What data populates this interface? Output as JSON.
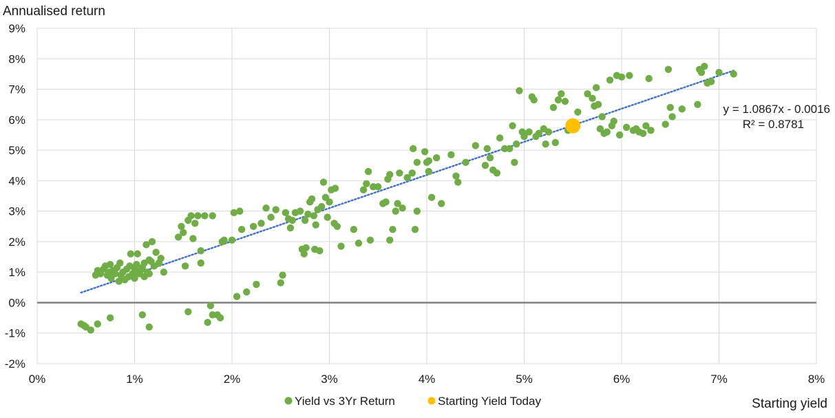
{
  "chart_data": {
    "type": "scatter",
    "ylabel": "Annualised return",
    "xlabel": "Starting yield",
    "xlim": [
      0,
      8
    ],
    "ylim": [
      -2,
      9
    ],
    "x_ticks": [
      "0%",
      "1%",
      "2%",
      "3%",
      "4%",
      "5%",
      "6%",
      "7%",
      "8%"
    ],
    "y_ticks": [
      "9%",
      "8%",
      "7%",
      "6%",
      "5%",
      "4%",
      "3%",
      "2%",
      "1%",
      "0%",
      "-1%",
      "-2%"
    ],
    "grid": "horizontal and vertical",
    "legend_position": "bottom-center",
    "trendline": {
      "equation": "y = 1.0867x - 0.0016",
      "r_squared": "R² = 0.8781",
      "slope": 1.0867,
      "intercept": -0.16,
      "x_start": 0.45,
      "x_end": 7.15,
      "color": "#4472c4"
    },
    "series": [
      {
        "name": "Yield vs 3Yr Return",
        "color": "#70ad47",
        "points": [
          [
            0.45,
            -0.7
          ],
          [
            0.48,
            -0.75
          ],
          [
            0.5,
            -0.8
          ],
          [
            0.55,
            -0.9
          ],
          [
            0.62,
            -0.7
          ],
          [
            0.75,
            -0.5
          ],
          [
            1.08,
            -0.4
          ],
          [
            1.15,
            -0.8
          ],
          [
            1.55,
            -0.3
          ],
          [
            1.75,
            -0.65
          ],
          [
            1.78,
            -0.1
          ],
          [
            1.8,
            -0.4
          ],
          [
            1.85,
            -0.4
          ],
          [
            1.88,
            -0.5
          ],
          [
            0.6,
            0.9
          ],
          [
            0.62,
            1.05
          ],
          [
            0.65,
            0.95
          ],
          [
            0.68,
            1.1
          ],
          [
            0.7,
            1.2
          ],
          [
            0.72,
            0.9
          ],
          [
            0.74,
            1.0
          ],
          [
            0.75,
            1.25
          ],
          [
            0.76,
            0.8
          ],
          [
            0.78,
            1.05
          ],
          [
            0.8,
            0.95
          ],
          [
            0.82,
            1.15
          ],
          [
            0.84,
            0.7
          ],
          [
            0.85,
            1.3
          ],
          [
            0.86,
            0.9
          ],
          [
            0.88,
            1.0
          ],
          [
            0.9,
            0.75
          ],
          [
            0.92,
            1.1
          ],
          [
            0.94,
            0.85
          ],
          [
            0.95,
            1.2
          ],
          [
            0.96,
            1.6
          ],
          [
            0.98,
            0.95
          ],
          [
            1.0,
            1.1
          ],
          [
            1.0,
            0.8
          ],
          [
            1.02,
            1.25
          ],
          [
            1.03,
            1.6
          ],
          [
            1.05,
            0.95
          ],
          [
            1.06,
            1.05
          ],
          [
            1.08,
            1.15
          ],
          [
            1.1,
            1.3
          ],
          [
            1.1,
            0.85
          ],
          [
            1.12,
            1.9
          ],
          [
            1.13,
            1.0
          ],
          [
            1.15,
            1.4
          ],
          [
            1.15,
            0.95
          ],
          [
            1.17,
            1.35
          ],
          [
            1.18,
            2.0
          ],
          [
            1.2,
            1.2
          ],
          [
            1.22,
            1.65
          ],
          [
            1.25,
            1.3
          ],
          [
            1.27,
            1.45
          ],
          [
            1.3,
            1.0
          ],
          [
            1.45,
            2.15
          ],
          [
            1.48,
            2.5
          ],
          [
            1.5,
            2.3
          ],
          [
            1.52,
            1.2
          ],
          [
            1.55,
            2.7
          ],
          [
            1.58,
            2.85
          ],
          [
            1.6,
            2.1
          ],
          [
            1.62,
            2.6
          ],
          [
            1.65,
            2.85
          ],
          [
            1.68,
            1.7
          ],
          [
            1.68,
            1.3
          ],
          [
            1.72,
            2.85
          ],
          [
            1.8,
            2.85
          ],
          [
            1.9,
            2.0
          ],
          [
            1.92,
            2.05
          ],
          [
            2.0,
            2.05
          ],
          [
            2.02,
            2.95
          ],
          [
            2.05,
            0.2
          ],
          [
            2.08,
            3.0
          ],
          [
            2.1,
            2.4
          ],
          [
            2.15,
            0.35
          ],
          [
            2.22,
            2.5
          ],
          [
            2.25,
            0.6
          ],
          [
            2.3,
            2.6
          ],
          [
            2.35,
            3.1
          ],
          [
            2.4,
            2.8
          ],
          [
            2.45,
            3.05
          ],
          [
            2.5,
            0.65
          ],
          [
            2.52,
            0.9
          ],
          [
            2.55,
            2.95
          ],
          [
            2.58,
            2.75
          ],
          [
            2.6,
            2.45
          ],
          [
            2.62,
            2.7
          ],
          [
            2.65,
            2.95
          ],
          [
            2.7,
            3.0
          ],
          [
            2.72,
            1.75
          ],
          [
            2.74,
            1.6
          ],
          [
            2.75,
            2.7
          ],
          [
            2.76,
            1.8
          ],
          [
            2.78,
            2.9
          ],
          [
            2.8,
            3.3
          ],
          [
            2.82,
            3.4
          ],
          [
            2.84,
            2.85
          ],
          [
            2.85,
            1.75
          ],
          [
            2.86,
            2.55
          ],
          [
            2.88,
            3.05
          ],
          [
            2.9,
            1.7
          ],
          [
            2.92,
            3.15
          ],
          [
            2.94,
            3.95
          ],
          [
            2.96,
            3.45
          ],
          [
            2.98,
            2.8
          ],
          [
            3.0,
            3.3
          ],
          [
            3.02,
            3.7
          ],
          [
            3.05,
            2.6
          ],
          [
            3.06,
            3.75
          ],
          [
            3.08,
            2.5
          ],
          [
            3.12,
            1.85
          ],
          [
            3.25,
            2.4
          ],
          [
            3.3,
            1.95
          ],
          [
            3.35,
            3.7
          ],
          [
            3.38,
            3.9
          ],
          [
            3.4,
            4.3
          ],
          [
            3.42,
            2.05
          ],
          [
            3.45,
            3.8
          ],
          [
            3.5,
            3.8
          ],
          [
            3.55,
            3.25
          ],
          [
            3.58,
            3.3
          ],
          [
            3.6,
            4.05
          ],
          [
            3.62,
            4.2
          ],
          [
            3.62,
            2.05
          ],
          [
            3.65,
            2.4
          ],
          [
            3.68,
            3.0
          ],
          [
            3.7,
            3.25
          ],
          [
            3.72,
            4.25
          ],
          [
            3.75,
            3.1
          ],
          [
            3.8,
            4.1
          ],
          [
            3.85,
            4.25
          ],
          [
            3.86,
            5.05
          ],
          [
            3.88,
            2.4
          ],
          [
            3.9,
            4.6
          ],
          [
            3.9,
            3.0
          ],
          [
            3.98,
            4.95
          ],
          [
            4.0,
            4.6
          ],
          [
            4.02,
            4.3
          ],
          [
            4.02,
            4.65
          ],
          [
            4.05,
            3.45
          ],
          [
            4.1,
            4.75
          ],
          [
            4.15,
            3.25
          ],
          [
            4.25,
            4.85
          ],
          [
            4.3,
            4.15
          ],
          [
            4.32,
            3.95
          ],
          [
            4.4,
            4.6
          ],
          [
            4.5,
            5.15
          ],
          [
            4.6,
            4.5
          ],
          [
            4.62,
            5.05
          ],
          [
            4.65,
            4.75
          ],
          [
            4.68,
            4.35
          ],
          [
            4.72,
            4.25
          ],
          [
            4.75,
            5.4
          ],
          [
            4.8,
            5.05
          ],
          [
            4.85,
            5.05
          ],
          [
            4.88,
            5.8
          ],
          [
            4.9,
            4.6
          ],
          [
            4.92,
            5.2
          ],
          [
            4.95,
            6.95
          ],
          [
            4.98,
            5.6
          ],
          [
            5.0,
            5.45
          ],
          [
            5.05,
            5.6
          ],
          [
            5.08,
            6.75
          ],
          [
            5.1,
            6.65
          ],
          [
            5.12,
            5.45
          ],
          [
            5.15,
            5.55
          ],
          [
            5.2,
            5.7
          ],
          [
            5.22,
            5.2
          ],
          [
            5.25,
            5.6
          ],
          [
            5.3,
            6.4
          ],
          [
            5.32,
            5.25
          ],
          [
            5.35,
            6.65
          ],
          [
            5.38,
            6.85
          ],
          [
            5.42,
            6.6
          ],
          [
            5.45,
            5.65
          ],
          [
            5.5,
            5.8
          ],
          [
            5.55,
            6.25
          ],
          [
            5.65,
            6.85
          ],
          [
            5.7,
            6.7
          ],
          [
            5.72,
            6.45
          ],
          [
            5.74,
            7.05
          ],
          [
            5.76,
            6.5
          ],
          [
            5.78,
            5.7
          ],
          [
            5.8,
            6.1
          ],
          [
            5.82,
            5.55
          ],
          [
            5.85,
            5.6
          ],
          [
            5.88,
            7.3
          ],
          [
            5.9,
            5.8
          ],
          [
            5.92,
            5.95
          ],
          [
            5.95,
            7.45
          ],
          [
            5.98,
            5.5
          ],
          [
            6.0,
            7.4
          ],
          [
            6.05,
            5.75
          ],
          [
            6.08,
            7.45
          ],
          [
            6.12,
            5.65
          ],
          [
            6.15,
            5.7
          ],
          [
            6.18,
            5.6
          ],
          [
            6.22,
            5.55
          ],
          [
            6.25,
            5.8
          ],
          [
            6.28,
            7.35
          ],
          [
            6.3,
            5.65
          ],
          [
            6.45,
            5.85
          ],
          [
            6.48,
            7.65
          ],
          [
            6.5,
            6.4
          ],
          [
            6.52,
            6.1
          ],
          [
            6.62,
            6.35
          ],
          [
            6.78,
            6.5
          ],
          [
            6.8,
            7.65
          ],
          [
            6.82,
            7.55
          ],
          [
            6.85,
            7.75
          ],
          [
            6.88,
            7.2
          ],
          [
            6.92,
            7.25
          ],
          [
            7.0,
            7.55
          ],
          [
            7.15,
            7.5
          ]
        ]
      },
      {
        "name": "Starting Yield Today",
        "color": "#ffc000",
        "points": [
          [
            5.5,
            5.8
          ]
        ]
      }
    ]
  }
}
